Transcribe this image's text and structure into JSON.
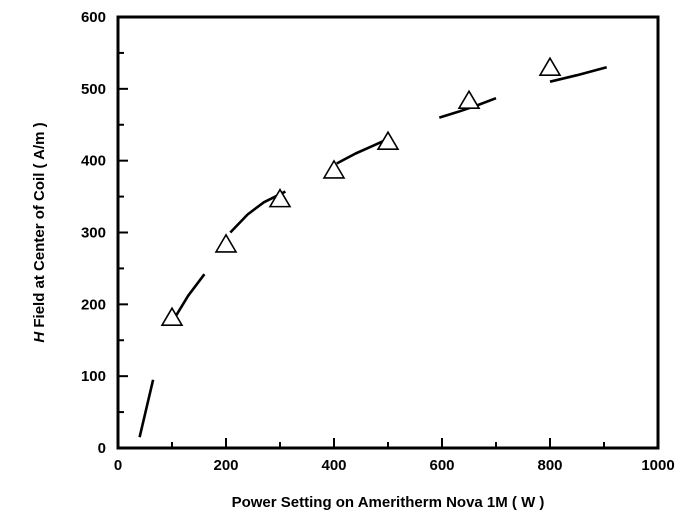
{
  "chart_data": {
    "type": "scatter",
    "xlabel": "Power Setting on Ameritherm Nova 1M ( W )",
    "ylabel_italic": "H",
    "ylabel_rest": " Field at Center of Coil ( A/m )",
    "xlim": [
      0,
      1000
    ],
    "ylim": [
      0,
      600
    ],
    "x_ticks": [
      0,
      200,
      400,
      600,
      800,
      1000
    ],
    "y_ticks": [
      0,
      100,
      200,
      300,
      400,
      500,
      600
    ],
    "grid": false,
    "series": [
      {
        "marker": "triangle-open",
        "x": [
          100,
          200,
          300,
          400,
          500,
          650,
          800
        ],
        "y": [
          180,
          282,
          345,
          385,
          425,
          482,
          528
        ]
      }
    ],
    "fit_segments": [
      [
        [
          40,
          15
        ],
        [
          65,
          95
        ]
      ],
      [
        [
          100,
          175
        ],
        [
          130,
          212
        ],
        [
          160,
          242
        ]
      ],
      [
        [
          208,
          300
        ],
        [
          240,
          325
        ],
        [
          270,
          342
        ],
        [
          310,
          357
        ]
      ],
      [
        [
          405,
          396
        ],
        [
          440,
          410
        ],
        [
          470,
          420
        ],
        [
          505,
          432
        ]
      ],
      [
        [
          595,
          460
        ],
        [
          630,
          468
        ],
        [
          665,
          477
        ],
        [
          700,
          487
        ]
      ],
      [
        [
          800,
          510
        ],
        [
          850,
          519
        ],
        [
          905,
          530
        ]
      ]
    ],
    "colors": {
      "ink": "#000000",
      "marker_fill": "#ffffff"
    }
  }
}
